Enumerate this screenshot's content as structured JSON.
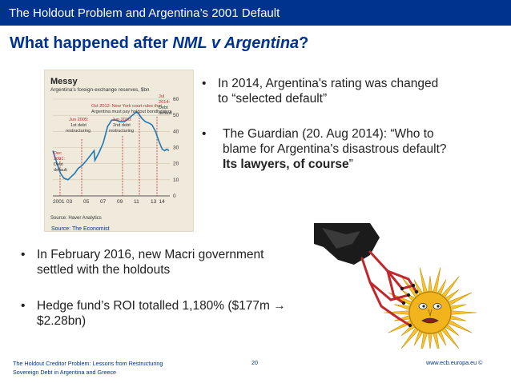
{
  "header": {
    "title": "The Holdout Problem and Argentina’s 2001 Default"
  },
  "slide": {
    "title_prefix": "What happened after ",
    "title_emph": "NML v Argentina",
    "title_suffix": "?"
  },
  "figure": {
    "header": "Messy",
    "subtitle": "Argentina's foreign-exchange reserves, $bn",
    "source": "Source: Haver Analytics",
    "caption": "Source: The Economist",
    "annotations": {
      "oct2012_l1": "Oct 2012: New York court rules that",
      "oct2012_l2": "Argentina must pay holdout bondholders",
      "jun2005_l1": "Jun 2005:",
      "jun2005_l2": "1st debt",
      "jun2005_l3": "restructuring",
      "jun2010_l1": "Jun 2010:",
      "jun2010_l2": "2nd debt",
      "jun2010_l3": "restructuring",
      "jul2014_l1": "Jul",
      "jul2014_l2": "2014:",
      "jul2014_l3": "Debt",
      "jul2014_l4": "default",
      "dec2001_l1": "Dec",
      "dec2001_l2": "2001:",
      "dec2001_l3": "Debt",
      "dec2001_l4": "default"
    }
  },
  "chart_data": {
    "type": "line",
    "title": "Messy",
    "subtitle": "Argentina's foreign-exchange reserves, $bn",
    "x_ticks": [
      "2001",
      "03",
      "05",
      "07",
      "09",
      "11",
      "13",
      "14"
    ],
    "y_ticks": [
      0,
      10,
      20,
      30,
      40,
      50,
      60
    ],
    "ylim": [
      0,
      60
    ],
    "series": [
      {
        "values": [
          {
            "x": 2001.0,
            "y": 28
          },
          {
            "x": 2001.5,
            "y": 20
          },
          {
            "x": 2001.9,
            "y": 14
          },
          {
            "x": 2002.3,
            "y": 11
          },
          {
            "x": 2002.8,
            "y": 10
          },
          {
            "x": 2003.2,
            "y": 12
          },
          {
            "x": 2003.6,
            "y": 14
          },
          {
            "x": 2004.0,
            "y": 17
          },
          {
            "x": 2004.5,
            "y": 19
          },
          {
            "x": 2005.0,
            "y": 22
          },
          {
            "x": 2005.45,
            "y": 25
          },
          {
            "x": 2005.9,
            "y": 28
          },
          {
            "x": 2006.0,
            "y": 22
          },
          {
            "x": 2006.5,
            "y": 27
          },
          {
            "x": 2007.0,
            "y": 33
          },
          {
            "x": 2007.5,
            "y": 43
          },
          {
            "x": 2008.0,
            "y": 47
          },
          {
            "x": 2008.5,
            "y": 47
          },
          {
            "x": 2009.0,
            "y": 46
          },
          {
            "x": 2009.5,
            "y": 46
          },
          {
            "x": 2010.0,
            "y": 48
          },
          {
            "x": 2010.45,
            "y": 50
          },
          {
            "x": 2010.9,
            "y": 52
          },
          {
            "x": 2011.2,
            "y": 51
          },
          {
            "x": 2011.6,
            "y": 48
          },
          {
            "x": 2012.0,
            "y": 46
          },
          {
            "x": 2012.5,
            "y": 45
          },
          {
            "x": 2012.8,
            "y": 44
          },
          {
            "x": 2013.2,
            "y": 40
          },
          {
            "x": 2013.6,
            "y": 34
          },
          {
            "x": 2014.0,
            "y": 29
          },
          {
            "x": 2014.3,
            "y": 28
          },
          {
            "x": 2014.55,
            "y": 29
          },
          {
            "x": 2014.8,
            "y": 28
          }
        ]
      }
    ],
    "source": "Source: Haver Analytics"
  },
  "bullets_right": [
    {
      "l1": "In 2014, Argentina's rating was changed",
      "l2": "to “selected default”"
    },
    {
      "l1": "The Guardian (20. Aug 2014): “Who to",
      "l2": "blame for Argentina's disastrous default?",
      "l3_bold": "Its lawyers, of course",
      "l3_tail": "”"
    }
  ],
  "bullets_left": [
    {
      "l1": "In February 2016, new Macri government",
      "l2": "settled with the holdouts"
    },
    {
      "l1": "Hedge fund’s ROI totalled 1,180% ($177m →",
      "l2": "$2.28bn)"
    }
  ],
  "bullet_symbol": "•",
  "footer": {
    "left_l1": "The Holdout Creditor Problem: Lessons from Restructuring",
    "left_l2": "Sovereign Debt in Argentina and Greece",
    "page": "20",
    "right": "www.ecb.europa.eu ©"
  },
  "colors": {
    "header_bar": "#00338d",
    "title": "#00338d",
    "chart_line": "#1f78b4",
    "chart_bg": "#efeadc",
    "annotation": "#c1272d"
  }
}
